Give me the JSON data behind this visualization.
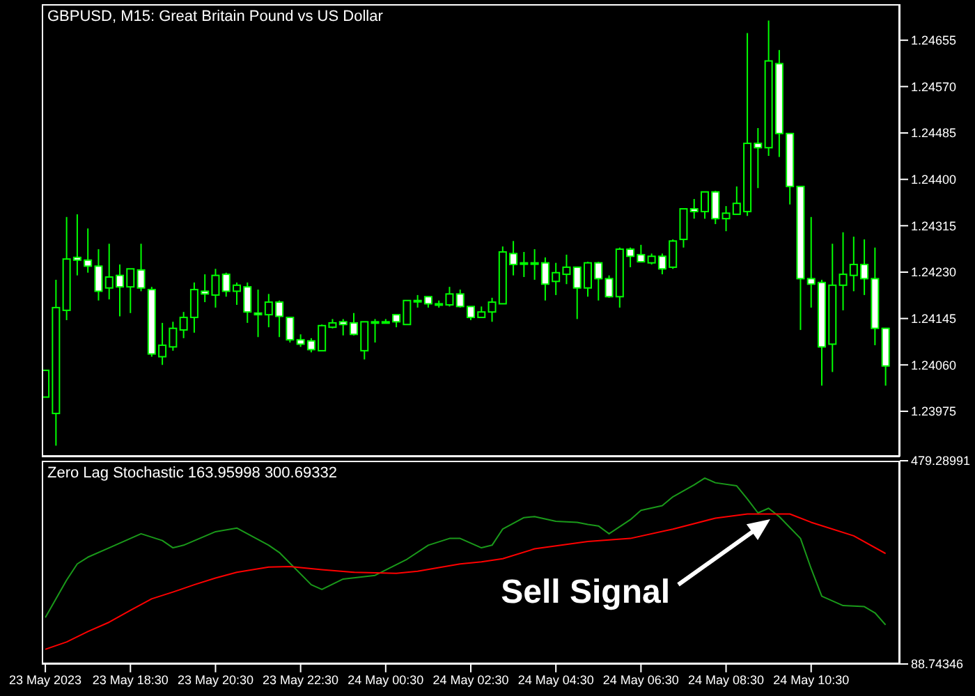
{
  "chart_data": [
    {
      "type": "candlestick",
      "title": "GBPUSD, M15:  Great Britain Pound vs US Dollar",
      "color": "#00ff00",
      "tick_labels": "y",
      "x": [
        "2023-05-23T16:30",
        "2023-05-23T16:45",
        "2023-05-23T17:00",
        "2023-05-23T17:15",
        "2023-05-23T17:30",
        "2023-05-23T17:45",
        "2023-05-23T18:00",
        "2023-05-23T18:15",
        "2023-05-23T18:30",
        "2023-05-23T18:45",
        "2023-05-23T19:00",
        "2023-05-23T19:15",
        "2023-05-23T19:30",
        "2023-05-23T19:45",
        "2023-05-23T20:00",
        "2023-05-23T20:15",
        "2023-05-23T20:30",
        "2023-05-23T20:45",
        "2023-05-23T21:00",
        "2023-05-23T21:15",
        "2023-05-23T21:30",
        "2023-05-23T21:45",
        "2023-05-23T22:00",
        "2023-05-23T22:15",
        "2023-05-23T22:30",
        "2023-05-23T22:45",
        "2023-05-23T23:00",
        "2023-05-23T23:15",
        "2023-05-23T23:30",
        "2023-05-23T23:45",
        "2023-05-24T00:00",
        "2023-05-24T00:15",
        "2023-05-24T00:30",
        "2023-05-24T00:45",
        "2023-05-24T01:00",
        "2023-05-24T01:15",
        "2023-05-24T01:30",
        "2023-05-24T01:45",
        "2023-05-24T02:00",
        "2023-05-24T02:15",
        "2023-05-24T02:30",
        "2023-05-24T02:45",
        "2023-05-24T03:00",
        "2023-05-24T03:15",
        "2023-05-24T03:30",
        "2023-05-24T03:45",
        "2023-05-24T04:00",
        "2023-05-24T04:15",
        "2023-05-24T04:30",
        "2023-05-24T04:45",
        "2023-05-24T05:00",
        "2023-05-24T05:15",
        "2023-05-24T05:30",
        "2023-05-24T05:45",
        "2023-05-24T06:00",
        "2023-05-24T06:15",
        "2023-05-24T06:30",
        "2023-05-24T06:45",
        "2023-05-24T07:00",
        "2023-05-24T07:15",
        "2023-05-24T07:30",
        "2023-05-24T07:45",
        "2023-05-24T08:00",
        "2023-05-24T08:15",
        "2023-05-24T08:30",
        "2023-05-24T08:45",
        "2023-05-24T09:00",
        "2023-05-24T09:15",
        "2023-05-24T09:30",
        "2023-05-24T09:45",
        "2023-05-24T10:00",
        "2023-05-24T10:15",
        "2023-05-24T10:30",
        "2023-05-24T10:45",
        "2023-05-24T11:00",
        "2023-05-24T11:15",
        "2023-05-24T11:30",
        "2023-05-24T11:45",
        "2023-05-24T12:00",
        "2023-05-24T12:15"
      ],
      "ohlc": [
        [
          1.24001,
          1.2405,
          1.24001,
          1.2405
        ],
        [
          1.23971,
          1.24216,
          1.23912,
          1.24165
        ],
        [
          1.2416,
          1.24331,
          1.24142,
          1.24254
        ],
        [
          1.24257,
          1.24336,
          1.24224,
          1.24252
        ],
        [
          1.24252,
          1.2431,
          1.24229,
          1.24241
        ],
        [
          1.24241,
          1.24272,
          1.24178,
          1.24195
        ],
        [
          1.24201,
          1.24282,
          1.2418,
          1.24221
        ],
        [
          1.24224,
          1.24244,
          1.24149,
          1.24203
        ],
        [
          1.24203,
          1.24236,
          1.24155,
          1.24236
        ],
        [
          1.24234,
          1.24282,
          1.24195,
          1.24201
        ],
        [
          1.24198,
          1.24203,
          1.24075,
          1.2408
        ],
        [
          1.24075,
          1.24137,
          1.2406,
          1.24096
        ],
        [
          1.24093,
          1.24139,
          1.24086,
          1.24127
        ],
        [
          1.24124,
          1.24157,
          1.24109,
          1.24147
        ],
        [
          1.24147,
          1.24211,
          1.24119,
          1.24198
        ],
        [
          1.24195,
          1.24226,
          1.24175,
          1.2419
        ],
        [
          1.24188,
          1.24236,
          1.24165,
          1.24224
        ],
        [
          1.24226,
          1.24229,
          1.24185,
          1.24195
        ],
        [
          1.24195,
          1.24211,
          1.2417,
          1.24206
        ],
        [
          1.24203,
          1.24211,
          1.24137,
          1.24157
        ],
        [
          1.24155,
          1.24198,
          1.24111,
          1.24152
        ],
        [
          1.24152,
          1.2419,
          1.24129,
          1.24175
        ],
        [
          1.24175,
          1.24178,
          1.24111,
          1.24149
        ],
        [
          1.24147,
          1.24147,
          1.24101,
          1.24106
        ],
        [
          1.24106,
          1.24116,
          1.24093,
          1.24098
        ],
        [
          1.24104,
          1.24109,
          1.24083,
          1.24088
        ],
        [
          1.24086,
          1.24134,
          1.24086,
          1.24132
        ],
        [
          1.24129,
          1.24144,
          1.24127,
          1.24137
        ],
        [
          1.24139,
          1.24144,
          1.24114,
          1.24134
        ],
        [
          1.24137,
          1.24155,
          1.24114,
          1.24116
        ],
        [
          1.24086,
          1.24139,
          1.2407,
          1.24139
        ],
        [
          1.24139,
          1.24144,
          1.24101,
          1.24139
        ],
        [
          1.24139,
          1.24144,
          1.24137,
          1.24139
        ],
        [
          1.24152,
          1.24152,
          1.24129,
          1.24139
        ],
        [
          1.24134,
          1.24178,
          1.24134,
          1.24178
        ],
        [
          1.24178,
          1.24188,
          1.24165,
          1.24178
        ],
        [
          1.24185,
          1.24185,
          1.24165,
          1.24172
        ],
        [
          1.24172,
          1.24178,
          1.24165,
          1.24172
        ],
        [
          1.2417,
          1.24203,
          1.24167,
          1.2419
        ],
        [
          1.2419,
          1.24198,
          1.24165,
          1.24167
        ],
        [
          1.24167,
          1.24167,
          1.24142,
          1.24147
        ],
        [
          1.24147,
          1.24167,
          1.24147,
          1.24157
        ],
        [
          1.24157,
          1.24183,
          1.24139,
          1.24175
        ],
        [
          1.24172,
          1.24277,
          1.24172,
          1.24267
        ],
        [
          1.24264,
          1.24287,
          1.24224,
          1.24244
        ],
        [
          1.24247,
          1.24267,
          1.24221,
          1.24247
        ],
        [
          1.24247,
          1.24272,
          1.24216,
          1.24247
        ],
        [
          1.24247,
          1.24257,
          1.24178,
          1.24208
        ],
        [
          1.24213,
          1.24247,
          1.24188,
          1.24229
        ],
        [
          1.24226,
          1.24262,
          1.24208,
          1.24239
        ],
        [
          1.24239,
          1.24239,
          1.24144,
          1.24201
        ],
        [
          1.24201,
          1.24249,
          1.24185,
          1.24247
        ],
        [
          1.24247,
          1.24249,
          1.24178,
          1.24218
        ],
        [
          1.24218,
          1.24224,
          1.24183,
          1.24185
        ],
        [
          1.24185,
          1.24275,
          1.24165,
          1.24272
        ],
        [
          1.24272,
          1.24275,
          1.24239,
          1.24259
        ],
        [
          1.24262,
          1.2428,
          1.24249,
          1.24249
        ],
        [
          1.24247,
          1.24264,
          1.24244,
          1.24259
        ],
        [
          1.24259,
          1.24264,
          1.24226,
          1.24236
        ],
        [
          1.24239,
          1.2429,
          1.24236,
          1.24287
        ],
        [
          1.2429,
          1.24346,
          1.24275,
          1.24346
        ],
        [
          1.24346,
          1.24364,
          1.24328,
          1.24341
        ],
        [
          1.24341,
          1.24377,
          1.24328,
          1.24377
        ],
        [
          1.24377,
          1.24379,
          1.24318,
          1.24328
        ],
        [
          1.24328,
          1.24351,
          1.24305,
          1.24338
        ],
        [
          1.24336,
          1.24387,
          1.24336,
          1.24356
        ],
        [
          1.24341,
          1.24668,
          1.24333,
          1.24466
        ],
        [
          1.24466,
          1.24494,
          1.24384,
          1.24458
        ],
        [
          1.24458,
          1.24691,
          1.24443,
          1.24617
        ],
        [
          1.24612,
          1.24637,
          1.24441,
          1.24484
        ],
        [
          1.24484,
          1.24484,
          1.24354,
          1.24387
        ],
        [
          1.24387,
          1.24387,
          1.24124,
          1.24218
        ],
        [
          1.24218,
          1.24331,
          1.24165,
          1.24208
        ],
        [
          1.24211,
          1.24216,
          1.24022,
          1.24093
        ],
        [
          1.24098,
          1.24282,
          1.24047,
          1.24206
        ],
        [
          1.24206,
          1.24303,
          1.2416,
          1.24226
        ],
        [
          1.24224,
          1.24295,
          1.24195,
          1.24244
        ],
        [
          1.24244,
          1.2429,
          1.24188,
          1.24218
        ],
        [
          1.24218,
          1.24275,
          1.24096,
          1.24127
        ],
        [
          1.24127,
          1.24127,
          1.24022,
          1.24058
        ]
      ],
      "xlim": [
        "2023-05-23T16:25",
        "2023-05-24T12:35"
      ],
      "ylim": [
        1.23892,
        1.24721
      ],
      "yticks": [
        1.23975,
        {
          "value": 1.2406,
          "label": "1.24060"
        },
        1.24145,
        {
          "value": 1.2423,
          "label": "1.24230"
        },
        1.24315,
        {
          "value": 1.244,
          "label": "1.24400"
        },
        1.24485,
        {
          "value": 1.2457,
          "label": "1.24570"
        },
        1.24655
      ]
    },
    {
      "type": "line",
      "title": "Zero Lag Stochastic 163.95998 300.69332",
      "marker": "none",
      "series": [
        {
          "color": "#1a9a1a",
          "x": [
            "2023-05-23T16:30",
            "2023-05-23T17:00",
            "2023-05-23T17:15",
            "2023-05-23T17:30",
            "2023-05-23T18:00",
            "2023-05-23T18:15",
            "2023-05-23T18:45",
            "2023-05-23T19:15",
            "2023-05-23T19:30",
            "2023-05-23T19:45",
            "2023-05-23T20:30",
            "2023-05-23T21:00",
            "2023-05-23T21:45",
            "2023-05-23T22:00",
            "2023-05-23T22:45",
            "2023-05-23T23:00",
            "2023-05-23T23:30",
            "2023-05-24T00:15",
            "2023-05-24T01:00",
            "2023-05-24T01:30",
            "2023-05-24T02:00",
            "2023-05-24T02:15",
            "2023-05-24T02:45",
            "2023-05-24T03:00",
            "2023-05-24T03:15",
            "2023-05-24T03:45",
            "2023-05-24T04:00",
            "2023-05-24T04:30",
            "2023-05-24T05:00",
            "2023-05-24T05:15",
            "2023-05-24T05:30",
            "2023-05-24T05:45",
            "2023-05-24T06:15",
            "2023-05-24T06:30",
            "2023-05-24T07:00",
            "2023-05-24T07:15",
            "2023-05-24T07:45",
            "2023-05-24T08:00",
            "2023-05-24T08:15",
            "2023-05-24T08:45",
            "2023-05-24T09:00",
            "2023-05-24T09:15",
            "2023-05-24T09:30",
            "2023-05-24T09:45",
            "2023-05-24T10:15",
            "2023-05-24T10:30",
            "2023-05-24T10:45",
            "2023-05-24T11:15",
            "2023-05-24T11:45",
            "2023-05-24T12:00",
            "2023-05-24T12:15"
          ],
          "values": [
            178,
            250,
            281,
            294,
            312,
            321,
            339,
            326,
            312,
            317,
            343,
            350,
            317,
            303,
            241,
            232,
            252,
            259,
            290,
            317,
            330,
            330,
            312,
            317,
            348,
            370,
            372,
            363,
            361,
            357,
            354,
            339,
            366,
            384,
            393,
            410,
            433,
            446,
            437,
            431,
            406,
            379,
            388,
            372,
            330,
            272,
            219,
            201,
            199,
            187,
            164
          ]
        },
        {
          "color": "#ff0000",
          "x": [
            "2023-05-23T16:30",
            "2023-05-23T17:00",
            "2023-05-23T17:30",
            "2023-05-23T18:00",
            "2023-05-23T18:30",
            "2023-05-23T19:00",
            "2023-05-23T19:30",
            "2023-05-23T20:00",
            "2023-05-23T20:30",
            "2023-05-23T21:00",
            "2023-05-23T21:45",
            "2023-05-23T22:15",
            "2023-05-23T23:00",
            "2023-05-23T23:45",
            "2023-05-24T00:45",
            "2023-05-24T01:15",
            "2023-05-24T01:45",
            "2023-05-24T02:15",
            "2023-05-24T02:45",
            "2023-05-24T03:15",
            "2023-05-24T04:00",
            "2023-05-24T05:15",
            "2023-05-24T06:15",
            "2023-05-24T07:15",
            "2023-05-24T08:15",
            "2023-05-24T09:00",
            "2023-05-24T10:00",
            "2023-05-24T10:30",
            "2023-05-24T11:30",
            "2023-05-24T12:15"
          ],
          "values": [
            117,
            131,
            151,
            169,
            192,
            214,
            227,
            241,
            254,
            265,
            275,
            276,
            270,
            265,
            263,
            267,
            274,
            281,
            285,
            291,
            310,
            324,
            330,
            348,
            369,
            377,
            377,
            361,
            335,
            301
          ]
        }
      ],
      "annotations": [
        "Sell Signal"
      ],
      "xlim": [
        "2023-05-23T16:25",
        "2023-05-24T12:35"
      ],
      "xticks": [
        {
          "value": "2023-05-23T16:30",
          "label": "23 May 2023"
        },
        {
          "value": "2023-05-23T18:30",
          "label": "23 May 18:30"
        },
        {
          "value": "2023-05-23T20:30",
          "label": "23 May 20:30"
        },
        {
          "value": "2023-05-23T22:30",
          "label": "23 May 22:30"
        },
        {
          "value": "2023-05-24T00:30",
          "label": "24 May 00:30"
        },
        {
          "value": "2023-05-24T02:30",
          "label": "24 May 02:30"
        },
        {
          "value": "2023-05-24T04:30",
          "label": "24 May 04:30"
        },
        {
          "value": "2023-05-24T06:30",
          "label": "24 May 06:30"
        },
        {
          "value": "2023-05-24T08:30",
          "label": "24 May 08:30"
        },
        {
          "value": "2023-05-24T10:30",
          "label": "24 May 10:30"
        }
      ],
      "ylim": [
        88.74346,
        479.28991
      ],
      "yticks": [
        88.74346,
        479.28991
      ]
    }
  ]
}
